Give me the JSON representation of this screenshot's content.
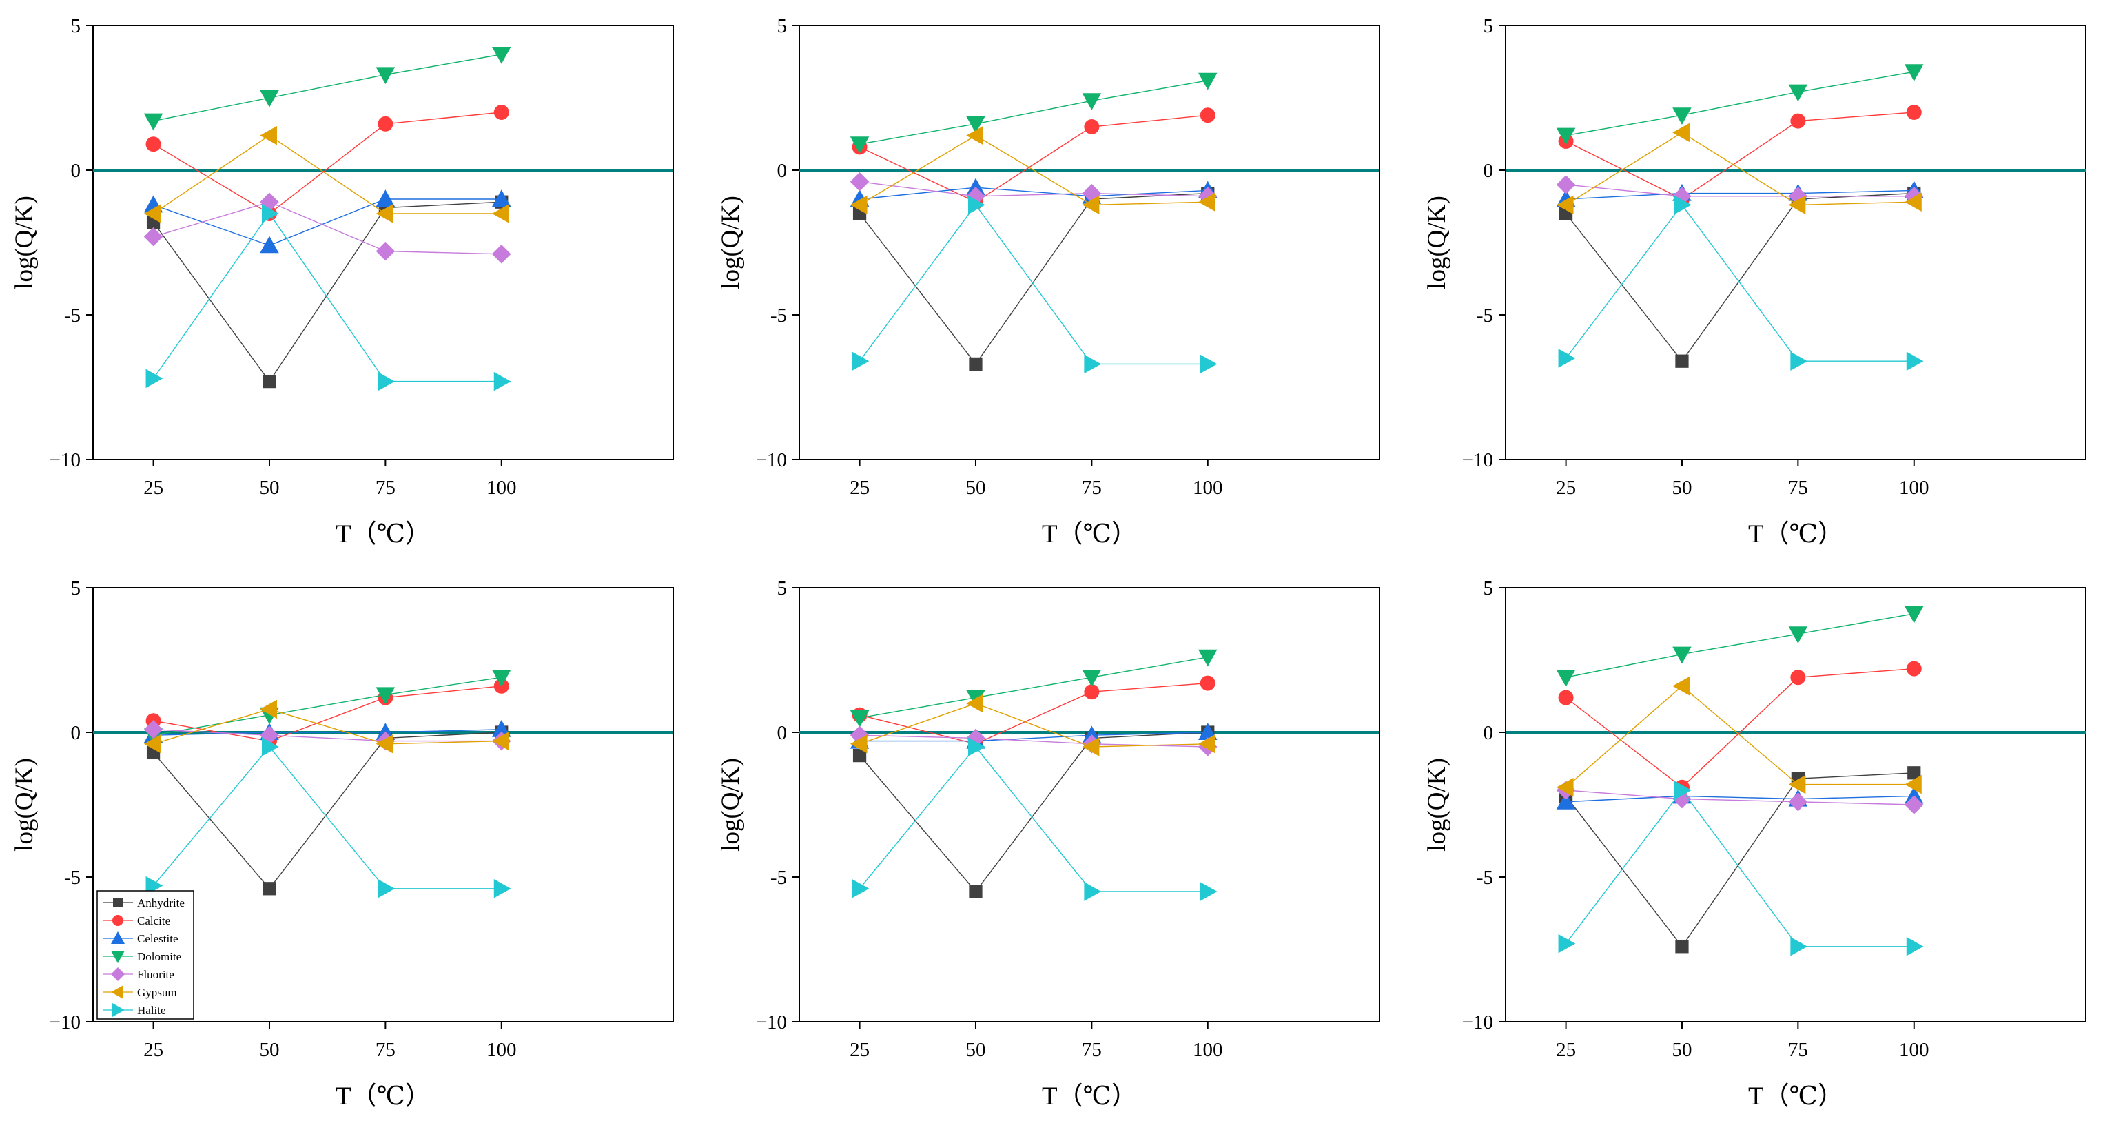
{
  "chart_data": [
    {
      "type": "line",
      "xlabel": "T（℃）",
      "ylabel": "log(Q/K)",
      "x": [
        25,
        50,
        75,
        100
      ],
      "xlim": [
        12,
        137
      ],
      "ylim": [
        -10,
        5
      ],
      "yticks": [
        -10,
        -5,
        0,
        5
      ],
      "yticklabels": [
        "−10",
        "-5",
        "0",
        "5"
      ],
      "xticklabels": [
        "25",
        "50",
        "75",
        "100"
      ],
      "reference_line_y": 0,
      "series": [
        {
          "name": "Anhydrite",
          "values": [
            -1.8,
            -7.3,
            -1.3,
            -1.1
          ]
        },
        {
          "name": "Calcite",
          "values": [
            0.9,
            -1.5,
            1.6,
            2.0
          ]
        },
        {
          "name": "Celestite",
          "values": [
            -1.2,
            -2.6,
            -1.0,
            -1.0
          ]
        },
        {
          "name": "Dolomite",
          "values": [
            1.7,
            2.5,
            3.3,
            4.0
          ]
        },
        {
          "name": "Fluorite",
          "values": [
            -2.3,
            -1.1,
            -2.8,
            -2.9
          ]
        },
        {
          "name": "Gypsum",
          "values": [
            -1.5,
            1.2,
            -1.5,
            -1.5
          ]
        },
        {
          "name": "Halite",
          "values": [
            -7.2,
            -1.5,
            -7.3,
            -7.3
          ]
        }
      ]
    },
    {
      "type": "line",
      "xlabel": "T（℃）",
      "ylabel": "log(Q/K)",
      "x": [
        25,
        50,
        75,
        100
      ],
      "xlim": [
        12,
        137
      ],
      "ylim": [
        -10,
        5
      ],
      "yticks": [
        -10,
        -5,
        0,
        5
      ],
      "yticklabels": [
        "−10",
        "-5",
        "0",
        "5"
      ],
      "xticklabels": [
        "25",
        "50",
        "75",
        "100"
      ],
      "reference_line_y": 0,
      "series": [
        {
          "name": "Anhydrite",
          "values": [
            -1.5,
            -6.7,
            -1.0,
            -0.8
          ]
        },
        {
          "name": "Calcite",
          "values": [
            0.8,
            -1.1,
            1.5,
            1.9
          ]
        },
        {
          "name": "Celestite",
          "values": [
            -1.0,
            -0.6,
            -0.9,
            -0.7
          ]
        },
        {
          "name": "Dolomite",
          "values": [
            0.9,
            1.6,
            2.4,
            3.1
          ]
        },
        {
          "name": "Fluorite",
          "values": [
            -0.4,
            -0.9,
            -0.8,
            -0.9
          ]
        },
        {
          "name": "Gypsum",
          "values": [
            -1.2,
            1.2,
            -1.2,
            -1.1
          ]
        },
        {
          "name": "Halite",
          "values": [
            -6.6,
            -1.2,
            -6.7,
            -6.7
          ]
        }
      ]
    },
    {
      "type": "line",
      "xlabel": "T（℃）",
      "ylabel": "log(Q/K)",
      "x": [
        25,
        50,
        75,
        100
      ],
      "xlim": [
        12,
        137
      ],
      "ylim": [
        -10,
        5
      ],
      "yticks": [
        -10,
        -5,
        0,
        5
      ],
      "yticklabels": [
        "−10",
        "-5",
        "0",
        "5"
      ],
      "xticklabels": [
        "25",
        "50",
        "75",
        "100"
      ],
      "reference_line_y": 0,
      "series": [
        {
          "name": "Anhydrite",
          "values": [
            -1.5,
            -6.6,
            -1.0,
            -0.8
          ]
        },
        {
          "name": "Calcite",
          "values": [
            1.0,
            -1.0,
            1.7,
            2.0
          ]
        },
        {
          "name": "Celestite",
          "values": [
            -1.0,
            -0.8,
            -0.8,
            -0.7
          ]
        },
        {
          "name": "Dolomite",
          "values": [
            1.2,
            1.9,
            2.7,
            3.4
          ]
        },
        {
          "name": "Fluorite",
          "values": [
            -0.5,
            -0.9,
            -0.9,
            -0.9
          ]
        },
        {
          "name": "Gypsum",
          "values": [
            -1.2,
            1.3,
            -1.2,
            -1.1
          ]
        },
        {
          "name": "Halite",
          "values": [
            -6.5,
            -1.2,
            -6.6,
            -6.6
          ]
        }
      ]
    },
    {
      "type": "line",
      "xlabel": "T（℃）",
      "ylabel": "log(Q/K)",
      "x": [
        25,
        50,
        75,
        100
      ],
      "xlim": [
        12,
        137
      ],
      "ylim": [
        -10,
        5
      ],
      "yticks": [
        -10,
        -5,
        0,
        5
      ],
      "yticklabels": [
        "−10",
        "-5",
        "0",
        "5"
      ],
      "xticklabels": [
        "25",
        "50",
        "75",
        "100"
      ],
      "reference_line_y": 0,
      "legend": "bottom-left",
      "series": [
        {
          "name": "Anhydrite",
          "values": [
            -0.7,
            -5.4,
            -0.2,
            0.0
          ]
        },
        {
          "name": "Calcite",
          "values": [
            0.4,
            -0.3,
            1.2,
            1.6
          ]
        },
        {
          "name": "Celestite",
          "values": [
            -0.1,
            0.0,
            0.0,
            0.1
          ]
        },
        {
          "name": "Dolomite",
          "values": [
            -0.1,
            0.6,
            1.3,
            1.9
          ]
        },
        {
          "name": "Fluorite",
          "values": [
            0.1,
            -0.1,
            -0.3,
            -0.3
          ]
        },
        {
          "name": "Gypsum",
          "values": [
            -0.4,
            0.8,
            -0.4,
            -0.3
          ]
        },
        {
          "name": "Halite",
          "values": [
            -5.3,
            -0.5,
            -5.4,
            -5.4
          ]
        }
      ]
    },
    {
      "type": "line",
      "xlabel": "T（℃）",
      "ylabel": "log(Q/K)",
      "x": [
        25,
        50,
        75,
        100
      ],
      "xlim": [
        12,
        137
      ],
      "ylim": [
        -10,
        5
      ],
      "yticks": [
        -10,
        -5,
        0,
        5
      ],
      "yticklabels": [
        "−10",
        "-5",
        "0",
        "5"
      ],
      "xticklabels": [
        "25",
        "50",
        "75",
        "100"
      ],
      "reference_line_y": 0,
      "series": [
        {
          "name": "Anhydrite",
          "values": [
            -0.8,
            -5.5,
            -0.2,
            0.0
          ]
        },
        {
          "name": "Calcite",
          "values": [
            0.6,
            -0.4,
            1.4,
            1.7
          ]
        },
        {
          "name": "Celestite",
          "values": [
            -0.3,
            -0.3,
            -0.1,
            0.0
          ]
        },
        {
          "name": "Dolomite",
          "values": [
            0.5,
            1.2,
            1.9,
            2.6
          ]
        },
        {
          "name": "Fluorite",
          "values": [
            -0.1,
            -0.2,
            -0.4,
            -0.5
          ]
        },
        {
          "name": "Gypsum",
          "values": [
            -0.4,
            1.0,
            -0.5,
            -0.4
          ]
        },
        {
          "name": "Halite",
          "values": [
            -5.4,
            -0.5,
            -5.5,
            -5.5
          ]
        }
      ]
    },
    {
      "type": "line",
      "xlabel": "T（℃）",
      "ylabel": "log(Q/K)",
      "x": [
        25,
        50,
        75,
        100
      ],
      "xlim": [
        12,
        137
      ],
      "ylim": [
        -10,
        5
      ],
      "yticks": [
        -10,
        -5,
        0,
        5
      ],
      "yticklabels": [
        "−10",
        "-5",
        "0",
        "5"
      ],
      "xticklabels": [
        "25",
        "50",
        "75",
        "100"
      ],
      "reference_line_y": 0,
      "series": [
        {
          "name": "Anhydrite",
          "values": [
            -2.2,
            -7.4,
            -1.6,
            -1.4
          ]
        },
        {
          "name": "Calcite",
          "values": [
            1.2,
            -1.9,
            1.9,
            2.2
          ]
        },
        {
          "name": "Celestite",
          "values": [
            -2.4,
            -2.2,
            -2.3,
            -2.2
          ]
        },
        {
          "name": "Dolomite",
          "values": [
            1.9,
            2.7,
            3.4,
            4.1
          ]
        },
        {
          "name": "Fluorite",
          "values": [
            -2.0,
            -2.3,
            -2.4,
            -2.5
          ]
        },
        {
          "name": "Gypsum",
          "values": [
            -1.9,
            1.6,
            -1.8,
            -1.8
          ]
        },
        {
          "name": "Halite",
          "values": [
            -7.3,
            -2.0,
            -7.4,
            -7.4
          ]
        }
      ]
    }
  ],
  "series_styles": [
    {
      "name": "Anhydrite",
      "color": "#404040",
      "marker": "square"
    },
    {
      "name": "Calcite",
      "color": "#ff3b3b",
      "marker": "circle"
    },
    {
      "name": "Celestite",
      "color": "#1e6fe0",
      "marker": "triangle-up"
    },
    {
      "name": "Dolomite",
      "color": "#10b26c",
      "marker": "triangle-down"
    },
    {
      "name": "Fluorite",
      "color": "#c77bdc",
      "marker": "diamond"
    },
    {
      "name": "Gypsum",
      "color": "#e0a000",
      "marker": "triangle-left"
    },
    {
      "name": "Halite",
      "color": "#22c8d2",
      "marker": "triangle-right"
    }
  ],
  "reference_line_color": "#00807f"
}
